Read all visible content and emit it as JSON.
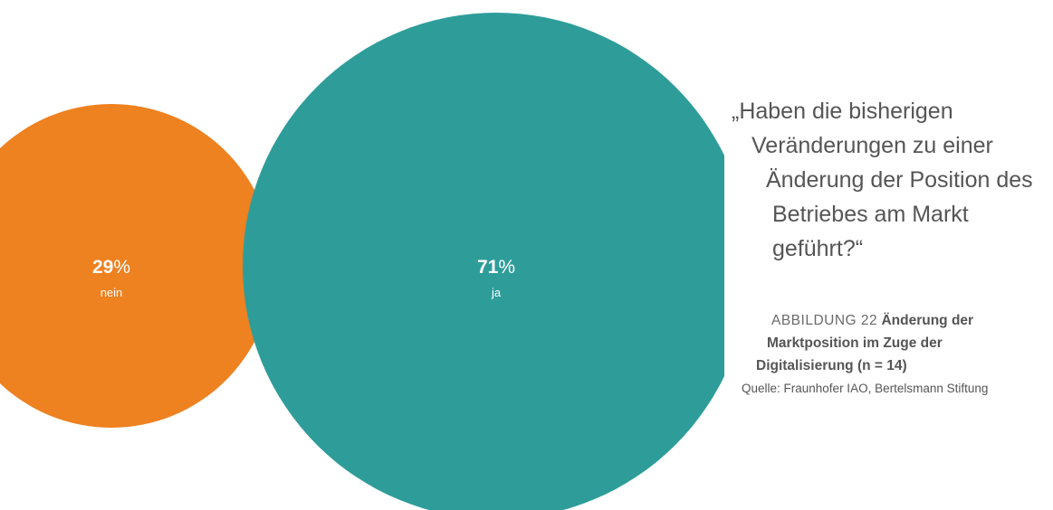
{
  "chart_data": {
    "type": "bubble",
    "series": [
      {
        "label": "nein",
        "value": 29,
        "unit": "%",
        "color": "#ee8120"
      },
      {
        "label": "ja",
        "value": 71,
        "unit": "%",
        "color": "#2e9d9a"
      }
    ]
  },
  "question": [
    "„Haben die bisherigen",
    "Veränderungen zu einer",
    "Änderung der Position des",
    "Betriebes am Markt",
    "geführt?“"
  ],
  "caption": {
    "figure_number": "ABBILDUNG 22",
    "title_lines": [
      "Änderung der",
      "Marktposition im Zuge der",
      "Digitalisierung (n = 14)"
    ],
    "source": "Quelle: Fraunhofer IAO, Bertelsmann Stiftung"
  }
}
